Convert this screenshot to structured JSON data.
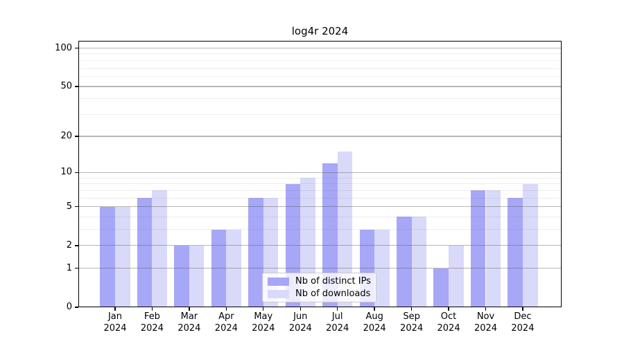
{
  "chart_data": {
    "type": "bar",
    "title": "log4r 2024",
    "categories": [
      "Jan 2024",
      "Feb 2024",
      "Mar 2024",
      "Apr 2024",
      "May 2024",
      "Jun 2024",
      "Jul 2024",
      "Aug 2024",
      "Sep 2024",
      "Oct 2024",
      "Nov 2024",
      "Dec 2024"
    ],
    "month_labels": [
      "Jan",
      "Feb",
      "Mar",
      "Apr",
      "May",
      "Jun",
      "Jul",
      "Aug",
      "Sep",
      "Oct",
      "Nov",
      "Dec"
    ],
    "year_label": "2024",
    "series": [
      {
        "name": "Nb of distinct IPs",
        "color": "#a7a7f7",
        "values": [
          5,
          6,
          2,
          3,
          6,
          8,
          12,
          3,
          4,
          1,
          7,
          6
        ]
      },
      {
        "name": "Nb of downloads",
        "color": "#d9d9f9",
        "values": [
          5,
          7,
          2,
          3,
          6,
          9,
          15,
          3,
          4,
          2,
          7,
          8
        ]
      }
    ],
    "xlabel": "",
    "ylabel": "",
    "yscale": "log1p",
    "ylim": [
      0,
      115
    ],
    "yticks_major": [
      0,
      1,
      2,
      5,
      10,
      20,
      50,
      100
    ],
    "yticks_minor": [
      3,
      4,
      6,
      7,
      8,
      9,
      30,
      40,
      60,
      70,
      80,
      90
    ],
    "grid": "horizontal major and minor gridlines, drawn over bars",
    "legend_position": "bottom center inside plot"
  },
  "colors": {
    "background": "#ffffff",
    "axis_spine": "#000000",
    "text": "#000000",
    "major_grid": "#b5b5b5",
    "minor_grid": "#ededed",
    "legend_border": "#cccccc",
    "series_dark": "#a7a7f7",
    "series_light": "#d9d9f9"
  }
}
